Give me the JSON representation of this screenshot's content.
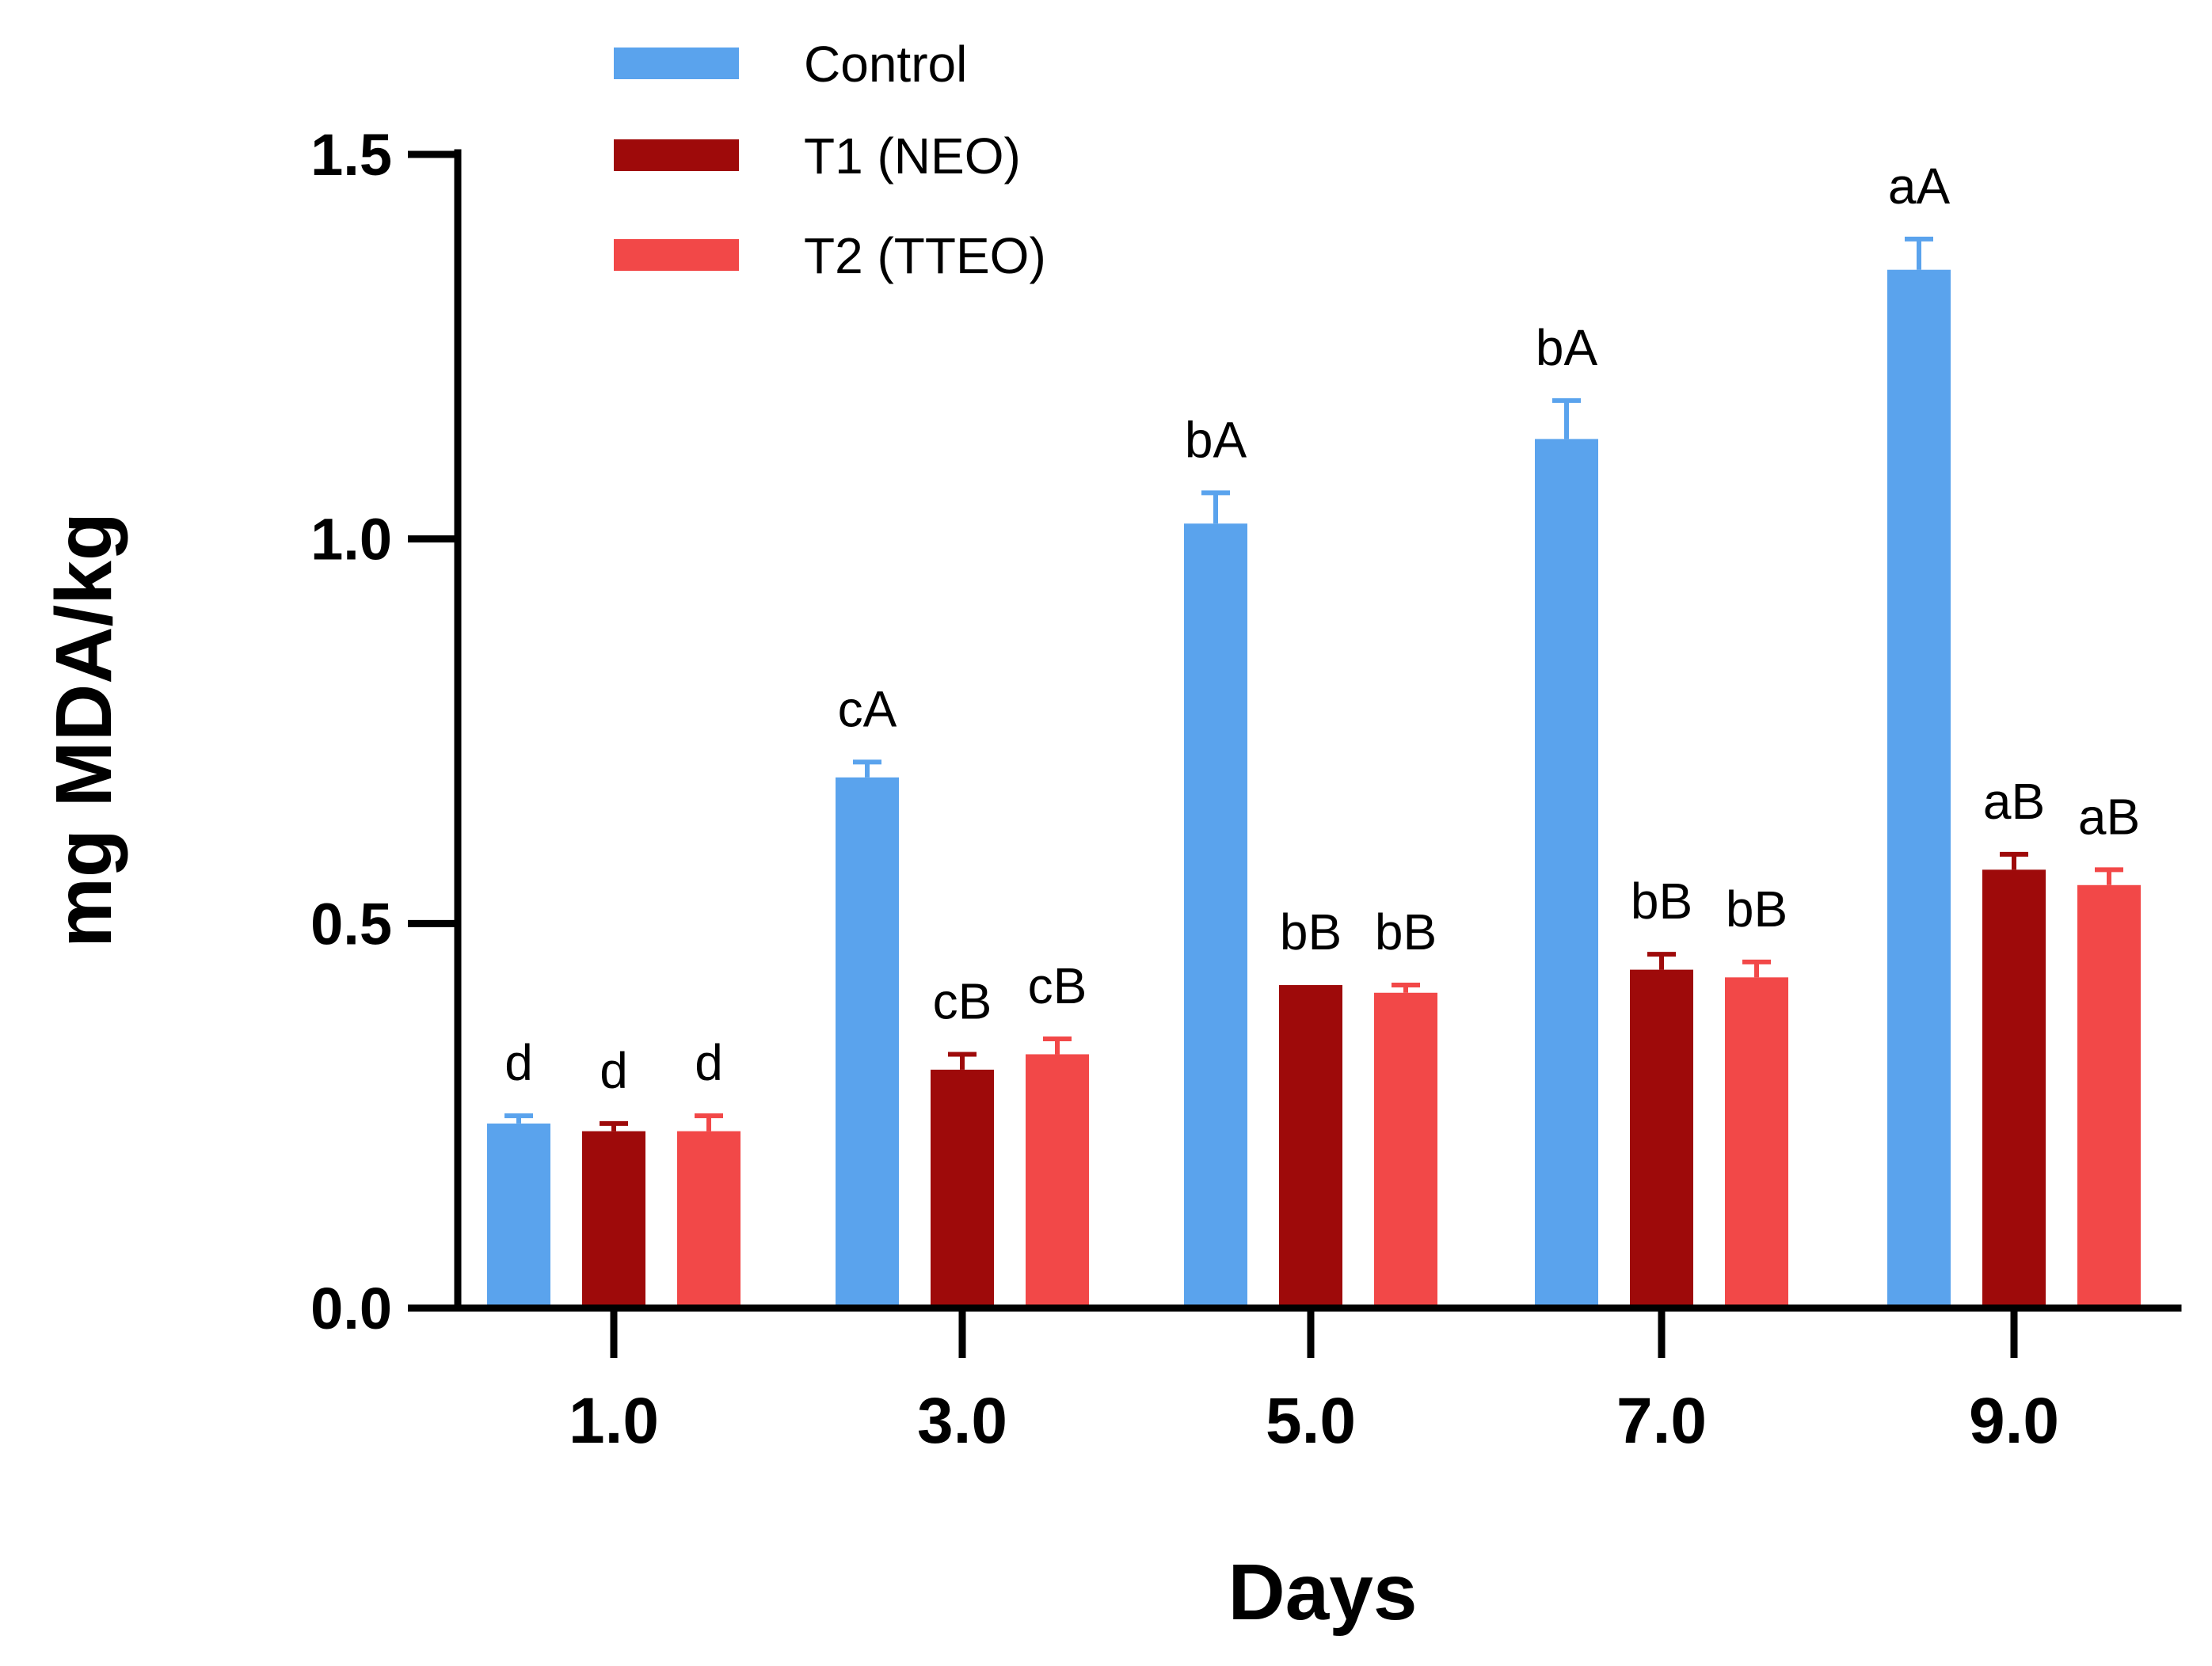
{
  "chart_data": {
    "type": "bar",
    "xlabel": "Days",
    "ylabel": "mg MDA/kg",
    "ylim": [
      0,
      1.5
    ],
    "yticks": [
      "0.0",
      "0.5",
      "1.0",
      "1.5"
    ],
    "categories": [
      "1.0",
      "3.0",
      "5.0",
      "7.0",
      "9.0"
    ],
    "series": [
      {
        "name": "Control",
        "color": "#5aa3ed",
        "values": [
          0.24,
          0.69,
          1.02,
          1.13,
          1.35
        ],
        "errors": [
          0.01,
          0.02,
          0.04,
          0.05,
          0.04
        ],
        "annotations": [
          "d",
          "cA",
          "bA",
          "bA",
          "aA"
        ]
      },
      {
        "name": "T1 (NEO)",
        "color": "#9e0a0a",
        "values": [
          0.23,
          0.31,
          0.42,
          0.44,
          0.57
        ],
        "errors": [
          0.01,
          0.02,
          0.0,
          0.02,
          0.02
        ],
        "annotations": [
          "d",
          "cB",
          "bB",
          "bB",
          "aB"
        ]
      },
      {
        "name": "T2 (TTEO)",
        "color": "#f24848",
        "values": [
          0.23,
          0.33,
          0.41,
          0.43,
          0.55
        ],
        "errors": [
          0.02,
          0.02,
          0.01,
          0.02,
          0.02
        ],
        "annotations": [
          "d",
          "cB",
          "bB",
          "bB",
          "aB"
        ]
      }
    ],
    "legend_position": "top-left",
    "grid": false
  }
}
